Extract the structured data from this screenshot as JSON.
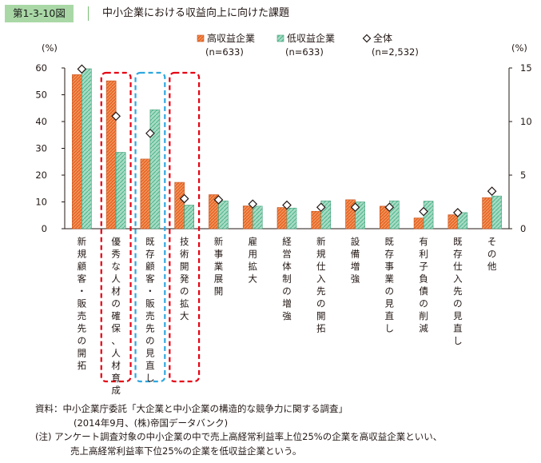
{
  "header": {
    "figure_number": "第1-3-10図",
    "title": "中小企業における収益向上に向けた課題"
  },
  "chart_data": {
    "type": "bar",
    "title": "中小企業における収益向上に向けた課題",
    "left_axis": {
      "unit_label": "(%)",
      "range": [
        0,
        60
      ],
      "ticks": [
        "0",
        "10",
        "20",
        "30",
        "40",
        "50",
        "60"
      ]
    },
    "right_axis": {
      "unit_label": "(%)",
      "range": [
        0,
        15
      ],
      "ticks": [
        "0",
        "5",
        "10",
        "15"
      ]
    },
    "categories": [
      "新規顧客・販売先の開拓",
      "優秀な人材の確保、人材育成",
      "既存顧客・販売先の見直し",
      "技術開発の拡大",
      "新事業展開",
      "雇用拡大",
      "経営体制の増強",
      "新規仕入先の開拓",
      "設備増強",
      "既存事業の見直し",
      "有利子負債の削減",
      "既存仕入先の見直し",
      "その他"
    ],
    "series": [
      {
        "name": "高収益企業",
        "note": "(n=633)",
        "axis": "left",
        "color": "#e8692a",
        "values": [
          57.5,
          55.2,
          26.0,
          17.3,
          12.7,
          8.5,
          7.9,
          6.5,
          10.8,
          8.4,
          4.0,
          5.2,
          11.6
        ]
      },
      {
        "name": "低収益企業",
        "note": "(n=633)",
        "axis": "left",
        "color": "#8ed3b5",
        "values": [
          59.7,
          28.5,
          44.4,
          8.8,
          10.4,
          8.4,
          7.7,
          10.4,
          10.0,
          10.4,
          10.3,
          6.0,
          12.2
        ]
      },
      {
        "name": "全体",
        "note": "(n=2,532)",
        "axis": "right",
        "marker": "diamond",
        "values": [
          14.9,
          10.5,
          8.9,
          2.8,
          2.7,
          2.3,
          2.2,
          2.0,
          2.0,
          2.0,
          1.6,
          1.5,
          3.5
        ]
      }
    ],
    "highlight_groups": [
      {
        "color": "#e60012",
        "categories": [
          1
        ]
      },
      {
        "color": "#2ea7e0",
        "categories": [
          2
        ]
      },
      {
        "color": "#e60012",
        "categories": [
          3
        ]
      }
    ],
    "grid": false,
    "legend_position": "top"
  },
  "notes": {
    "source_line1": "資料：中小企業庁委託「大企業と中小企業の構造的な競争力に関する調査」",
    "source_line2": "(2014年9月、(株)帝国データバンク)",
    "note_line1": "(注) アンケート調査対象の中小企業の中で売上高経常利益率上位25%の企業を高収益企業といい、",
    "note_line2": "売上高経常利益率下位25%の企業を低収益企業という。"
  }
}
